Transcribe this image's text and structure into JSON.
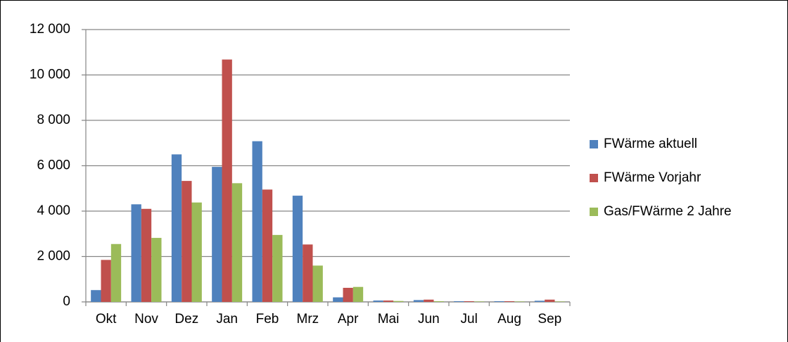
{
  "chart_data": {
    "type": "bar",
    "categories": [
      "Okt",
      "Nov",
      "Dez",
      "Jan",
      "Feb",
      "Mrz",
      "Apr",
      "Mai",
      "Jun",
      "Jul",
      "Aug",
      "Sep"
    ],
    "series": [
      {
        "name": "FWärme aktuell",
        "color": "#4f81bd",
        "values": [
          520,
          4300,
          6500,
          5950,
          7080,
          4680,
          200,
          60,
          80,
          30,
          30,
          50
        ]
      },
      {
        "name": "FWärme Vorjahr",
        "color": "#c0504d",
        "values": [
          1850,
          4100,
          5330,
          10680,
          4950,
          2530,
          620,
          60,
          100,
          30,
          30,
          100
        ]
      },
      {
        "name": "Gas/FWärme 2 Jahre",
        "color": "#9bbb59",
        "values": [
          2550,
          2820,
          4380,
          5230,
          2950,
          1600,
          660,
          40,
          30,
          20,
          20,
          20
        ]
      }
    ],
    "ylim": [
      0,
      12000
    ],
    "yticks": [
      0,
      {
        "value": 2000,
        "label": "2 000"
      },
      {
        "value": 4000,
        "label": "4 000"
      },
      {
        "value": 6000,
        "label": "6 000"
      },
      {
        "value": 8000,
        "label": "8 000"
      },
      {
        "value": 10000,
        "label": "10 000"
      },
      {
        "value": 12000,
        "label": "12 000"
      }
    ],
    "grid": true,
    "legend": "right"
  }
}
